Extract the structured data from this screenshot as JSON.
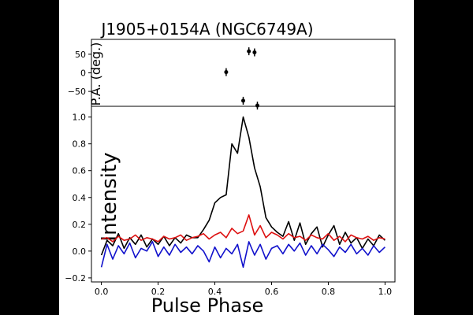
{
  "chart_data": [
    {
      "type": "scatter",
      "title": "J1905+0154A (NGC6749A)",
      "ylabel": "P.A. (deg.)",
      "xlim": [
        -0.035,
        1.035
      ],
      "ylim": [
        -90,
        90
      ],
      "yticks": [
        -50,
        0,
        50
      ],
      "ytick_labels": [
        "−50",
        "0",
        "50"
      ],
      "points": [
        {
          "x": 0.44,
          "y": 2
        },
        {
          "x": 0.5,
          "y": -75
        },
        {
          "x": 0.52,
          "y": 58
        },
        {
          "x": 0.54,
          "y": 55
        },
        {
          "x": 0.55,
          "y": -88
        }
      ],
      "error_bars": true
    },
    {
      "type": "line",
      "xlabel": "Pulse Phase",
      "ylabel": "Intensity",
      "xlim": [
        -0.035,
        1.035
      ],
      "ylim": [
        -0.23,
        1.08
      ],
      "xticks": [
        0.0,
        0.2,
        0.4,
        0.6,
        0.8,
        1.0
      ],
      "xtick_labels": [
        "0.0",
        "0.2",
        "0.4",
        "0.6",
        "0.8",
        "1.0"
      ],
      "yticks": [
        -0.2,
        0.0,
        0.2,
        0.4,
        0.6,
        0.8,
        1.0
      ],
      "ytick_labels": [
        "−0.2",
        "0.0",
        "0.2",
        "0.4",
        "0.6",
        "0.8",
        "1.0"
      ],
      "x": [
        0.0,
        0.02,
        0.04,
        0.06,
        0.08,
        0.1,
        0.12,
        0.14,
        0.16,
        0.18,
        0.2,
        0.22,
        0.24,
        0.26,
        0.28,
        0.3,
        0.32,
        0.34,
        0.36,
        0.38,
        0.4,
        0.42,
        0.44,
        0.46,
        0.48,
        0.5,
        0.52,
        0.54,
        0.56,
        0.58,
        0.6,
        0.62,
        0.64,
        0.66,
        0.68,
        0.7,
        0.72,
        0.74,
        0.76,
        0.78,
        0.8,
        0.82,
        0.84,
        0.86,
        0.88,
        0.9,
        0.92,
        0.94,
        0.96,
        0.98,
        1.0
      ],
      "series": [
        {
          "color": "#000000",
          "values": [
            -0.03,
            0.08,
            0.04,
            0.13,
            0.02,
            0.1,
            0.05,
            0.12,
            0.03,
            0.09,
            0.05,
            0.11,
            0.04,
            0.1,
            0.06,
            0.12,
            0.1,
            0.1,
            0.16,
            0.23,
            0.36,
            0.4,
            0.42,
            0.8,
            0.73,
            1.0,
            0.85,
            0.62,
            0.48,
            0.25,
            0.18,
            0.14,
            0.11,
            0.22,
            0.08,
            0.21,
            0.05,
            0.13,
            0.18,
            0.03,
            0.12,
            0.19,
            0.05,
            0.14,
            0.06,
            0.1,
            0.02,
            0.09,
            0.04,
            0.12,
            0.08
          ]
        },
        {
          "color": "#dd1111",
          "values": [
            0.09,
            0.1,
            0.07,
            0.11,
            0.08,
            0.09,
            0.12,
            0.08,
            0.1,
            0.09,
            0.07,
            0.11,
            0.09,
            0.1,
            0.12,
            0.08,
            0.1,
            0.11,
            0.13,
            0.09,
            0.12,
            0.14,
            0.1,
            0.17,
            0.13,
            0.15,
            0.27,
            0.12,
            0.19,
            0.1,
            0.14,
            0.12,
            0.09,
            0.13,
            0.1,
            0.11,
            0.08,
            0.12,
            0.1,
            0.09,
            0.13,
            0.08,
            0.11,
            0.07,
            0.12,
            0.1,
            0.09,
            0.11,
            0.08,
            0.1,
            0.09
          ]
        },
        {
          "color": "#1111cc",
          "values": [
            -0.12,
            0.05,
            -0.06,
            0.04,
            -0.02,
            0.06,
            -0.05,
            0.02,
            0.0,
            0.07,
            -0.04,
            0.03,
            -0.03,
            0.05,
            -0.01,
            0.03,
            -0.02,
            0.04,
            0.0,
            -0.08,
            0.03,
            -0.05,
            0.02,
            -0.02,
            0.05,
            -0.12,
            0.07,
            -0.03,
            0.05,
            -0.06,
            0.02,
            0.04,
            -0.02,
            0.05,
            0.0,
            0.06,
            -0.03,
            0.04,
            -0.02,
            0.05,
            0.01,
            -0.04,
            0.03,
            -0.01,
            0.05,
            -0.02,
            0.02,
            -0.03,
            0.04,
            -0.01,
            0.03
          ]
        }
      ]
    }
  ]
}
